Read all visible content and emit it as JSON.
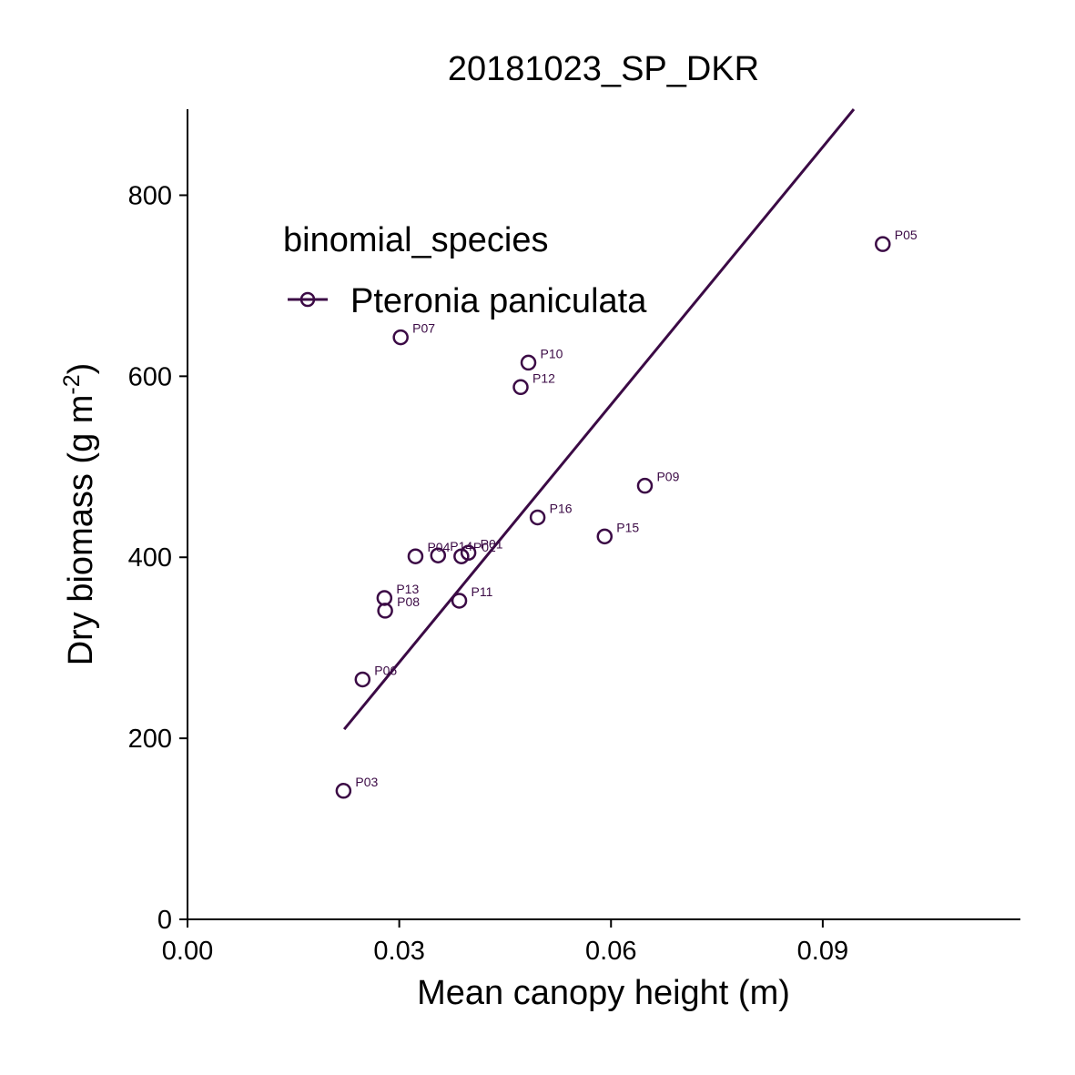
{
  "chart_data": {
    "type": "scatter",
    "title": "20181023_SP_DKR",
    "xlabel": "Mean canopy height (m)",
    "ylabel_main": "Dry biomass (g m",
    "ylabel_sup": "-2",
    "ylabel_close": ")",
    "xlim": [
      0.0,
      0.118
    ],
    "ylim": [
      0,
      895
    ],
    "x_ticks": [
      0.0,
      0.03,
      0.06,
      0.09
    ],
    "x_tick_labels": [
      "0.00",
      "0.03",
      "0.06",
      "0.09"
    ],
    "y_ticks": [
      0,
      200,
      400,
      600,
      800
    ],
    "y_tick_labels": [
      "0",
      "200",
      "400",
      "600",
      "800"
    ],
    "color": "#3b0a45",
    "legend": {
      "title": "binomial_species",
      "placement": "top-left",
      "entries": [
        "Pteronia paniculata"
      ]
    },
    "series": [
      {
        "name": "Pteronia paniculata",
        "points": [
          {
            "label": "P01",
            "x": 0.0398,
            "y": 405
          },
          {
            "label": "P02",
            "x": 0.0388,
            "y": 401
          },
          {
            "label": "P03",
            "x": 0.0221,
            "y": 142
          },
          {
            "label": "P04",
            "x": 0.0323,
            "y": 401
          },
          {
            "label": "P05",
            "x": 0.0985,
            "y": 746
          },
          {
            "label": "P06",
            "x": 0.0248,
            "y": 265
          },
          {
            "label": "P07",
            "x": 0.0302,
            "y": 643
          },
          {
            "label": "P08",
            "x": 0.028,
            "y": 341
          },
          {
            "label": "P09",
            "x": 0.0648,
            "y": 479
          },
          {
            "label": "P10",
            "x": 0.0483,
            "y": 615
          },
          {
            "label": "P11",
            "x": 0.0385,
            "y": 352
          },
          {
            "label": "P12",
            "x": 0.0472,
            "y": 588
          },
          {
            "label": "P13",
            "x": 0.0279,
            "y": 355
          },
          {
            "label": "P14",
            "x": 0.0355,
            "y": 402
          },
          {
            "label": "P15",
            "x": 0.0591,
            "y": 423
          },
          {
            "label": "P16",
            "x": 0.0496,
            "y": 444
          }
        ],
        "fit_line": {
          "x": [
            0.0222,
            0.0944
          ],
          "y": [
            210,
            895
          ]
        }
      }
    ]
  }
}
